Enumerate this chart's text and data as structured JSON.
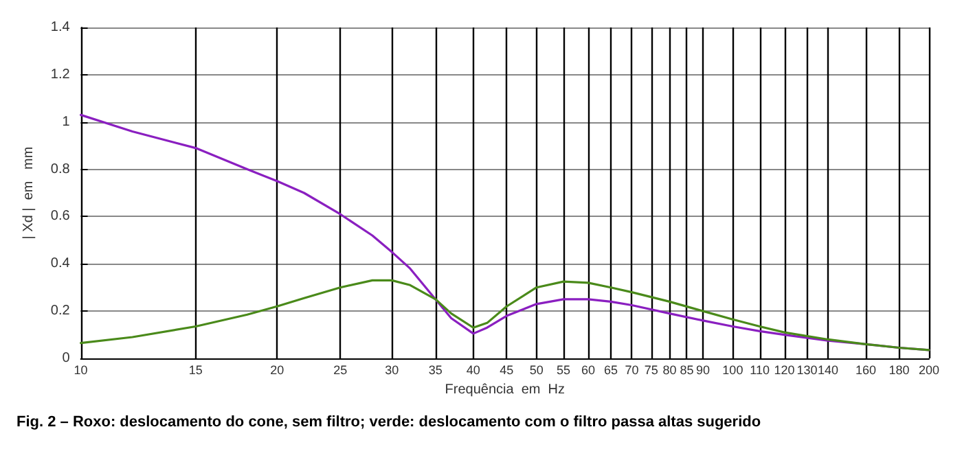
{
  "chart_data": {
    "type": "line",
    "xlabel": "Frequência  em  Hz",
    "ylabel": "| Xd |  em   mm",
    "annotations": [
      "Fig. 2 – Roxo: deslocamento do cone, sem filtro; verde: deslocamento com o filtro passa altas sugerido"
    ],
    "x": [
      10,
      12,
      15,
      18,
      20,
      22,
      25,
      28,
      30,
      32,
      35,
      37,
      40,
      42,
      45,
      50,
      55,
      60,
      65,
      70,
      80,
      90,
      100,
      110,
      120,
      140,
      160,
      180,
      200
    ],
    "series": [
      {
        "color": "#8a1fc0",
        "values": [
          1.03,
          0.96,
          0.89,
          0.8,
          0.75,
          0.7,
          0.61,
          0.52,
          0.45,
          0.38,
          0.25,
          0.17,
          0.105,
          0.13,
          0.18,
          0.23,
          0.25,
          0.25,
          0.24,
          0.225,
          0.19,
          0.16,
          0.135,
          0.115,
          0.1,
          0.075,
          0.06,
          0.045,
          0.035
        ]
      },
      {
        "color": "#4a8a1a",
        "values": [
          0.065,
          0.09,
          0.135,
          0.185,
          0.22,
          0.255,
          0.3,
          0.33,
          0.33,
          0.31,
          0.25,
          0.19,
          0.13,
          0.15,
          0.22,
          0.3,
          0.325,
          0.32,
          0.3,
          0.28,
          0.24,
          0.2,
          0.165,
          0.135,
          0.11,
          0.08,
          0.06,
          0.045,
          0.035
        ]
      }
    ],
    "log": "x",
    "xlim": [
      10,
      200
    ],
    "xticks": [
      10,
      15,
      20,
      25,
      30,
      35,
      40,
      45,
      50,
      55,
      60,
      65,
      70,
      75,
      80,
      85,
      90,
      100,
      110,
      120,
      130,
      140,
      160,
      180,
      200
    ],
    "ylim": [
      0,
      1.4
    ],
    "yticks": [
      0,
      0.2,
      0.4,
      0.6,
      0.8,
      1,
      1.2,
      1.4
    ],
    "grid": true,
    "marker": "none",
    "line_style": "solid"
  }
}
